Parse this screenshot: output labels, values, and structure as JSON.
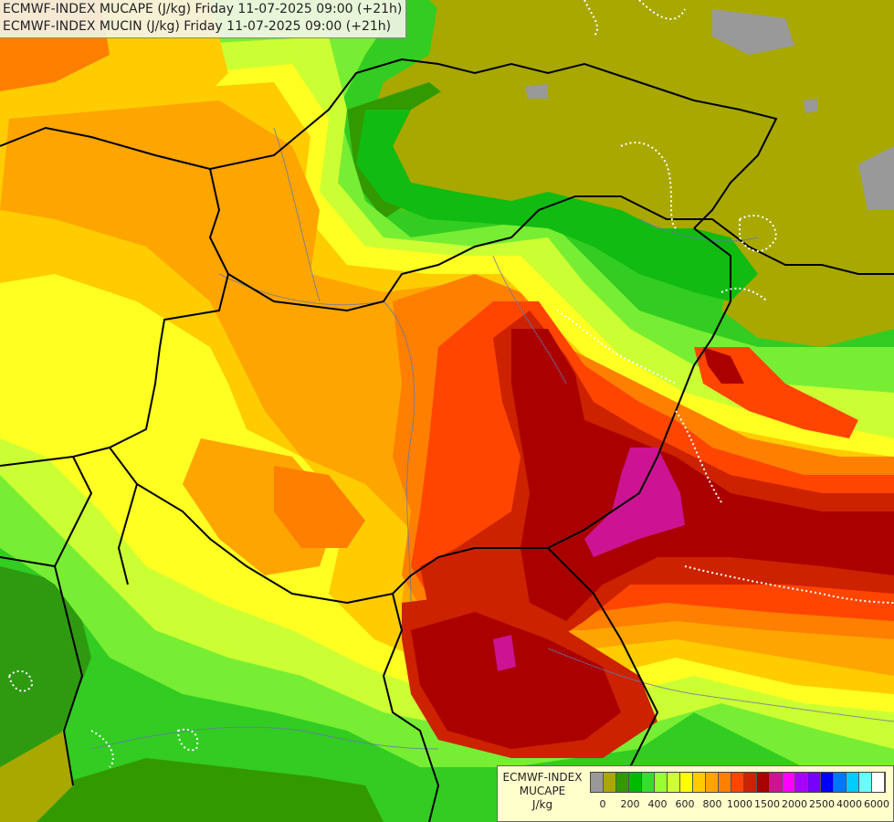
{
  "title": {
    "line1": "ECMWF-INDEX MUCAPE (J/kg) Friday 11-07-2025 09:00 (+21h)",
    "line2": "ECMWF-INDEX MUCIN (J/kg) Friday 11-07-2025 09:00 (+21h)"
  },
  "legend": {
    "line1": "ECMWF-INDEX",
    "line2": "MUCAPE",
    "line3": "J/kg",
    "colors": [
      "#999999",
      "#a8a800",
      "#339900",
      "#00bb00",
      "#33dd33",
      "#99ff33",
      "#ccff33",
      "#ffff00",
      "#ffcc00",
      "#ffa500",
      "#ff7f00",
      "#ff4500",
      "#cc2200",
      "#aa0000",
      "#cc1493",
      "#ff00ff",
      "#aa00ff",
      "#7700ff",
      "#0000ff",
      "#0077ff",
      "#00ccff",
      "#66ffff",
      "#ffffff"
    ],
    "ticks": [
      "0",
      "200",
      "400",
      "600",
      "800",
      "1000",
      "1500",
      "2000",
      "2500",
      "4000",
      "6000"
    ]
  },
  "map": {
    "palette": {
      "gray": "#999999",
      "olive": "#a8a800",
      "dark_green": "#339900",
      "green": "#11bb11",
      "light_green": "#66ee33",
      "yellow_green": "#ccff33",
      "yellow": "#ffff22",
      "gold": "#ffcc00",
      "orange": "#ffa500",
      "dark_orange": "#ff7f00",
      "red_orange": "#ff4500",
      "red": "#cc2200",
      "dark_red": "#aa0000",
      "magenta": "#cc1493",
      "border": "#000000",
      "river": "#6677aa",
      "cin_contour": "#ffffff"
    }
  }
}
